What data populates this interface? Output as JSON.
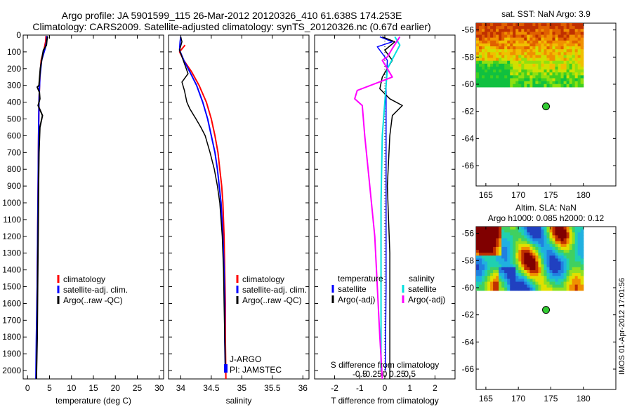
{
  "header": {
    "line1": "Argo profile: JA 5901599_115 26-Mar-2012 20120326_410 61.638S 174.253E",
    "line2": "Climatology: CARS2009. Satellite-adjusted climatology: synTS_20120326.nc (0.67d earlier)"
  },
  "colors": {
    "climatology": "#ff0000",
    "satellite": "#0000ff",
    "argo": "#000000",
    "salinity_satellite": "#00e0e0",
    "salinity_argo": "#ff00ff",
    "marker": "#33cc33"
  },
  "side_stamp": "IMOS 01-Apr-2012 17:01:56",
  "chart_data": [
    {
      "type": "line",
      "panel": "temperature",
      "xlabel": "temperature (deg C)",
      "xlim": [
        -1,
        31
      ],
      "ylim": [
        2050,
        0
      ],
      "xticks": [
        0,
        5,
        10,
        15,
        20,
        25,
        30
      ],
      "yticks": [
        0,
        100,
        200,
        300,
        400,
        500,
        600,
        700,
        800,
        900,
        1000,
        1100,
        1200,
        1300,
        1400,
        1500,
        1600,
        1700,
        1800,
        1900,
        2000
      ],
      "legend": [
        "climatology",
        "satellite-adj. clim.",
        "Argo(..raw -QC)"
      ],
      "series": [
        {
          "name": "climatology",
          "color": "#ff0000",
          "points": [
            [
              4.2,
              5
            ],
            [
              4.1,
              40
            ],
            [
              3.8,
              80
            ],
            [
              3.1,
              150
            ],
            [
              2.8,
              250
            ],
            [
              2.6,
              400
            ],
            [
              2.5,
              600
            ],
            [
              2.4,
              900
            ],
            [
              2.3,
              1200
            ],
            [
              2.2,
              1500
            ],
            [
              2.1,
              1800
            ],
            [
              2.0,
              2050
            ]
          ]
        },
        {
          "name": "satellite-adj. clim.",
          "color": "#0000ff",
          "points": [
            [
              4.4,
              5
            ],
            [
              4.3,
              40
            ],
            [
              4.0,
              80
            ],
            [
              3.2,
              150
            ],
            [
              2.8,
              250
            ],
            [
              2.6,
              400
            ],
            [
              2.5,
              600
            ],
            [
              2.4,
              900
            ],
            [
              2.3,
              1200
            ],
            [
              2.2,
              1500
            ],
            [
              2.0,
              1800
            ],
            [
              1.9,
              2050
            ]
          ]
        },
        {
          "name": "Argo(..raw -QC)",
          "color": "#000000",
          "points": [
            [
              4.6,
              8
            ],
            [
              4.4,
              30
            ],
            [
              4.3,
              60
            ],
            [
              3.6,
              90
            ],
            [
              3.2,
              150
            ],
            [
              2.9,
              200
            ],
            [
              2.6,
              300
            ],
            [
              2.2,
              310
            ],
            [
              2.7,
              340
            ],
            [
              2.8,
              380
            ],
            [
              2.4,
              420
            ],
            [
              3.4,
              480
            ],
            [
              2.8,
              550
            ],
            [
              2.6,
              700
            ],
            [
              2.5,
              900
            ],
            [
              2.4,
              1200
            ],
            [
              2.3,
              1500
            ],
            [
              2.2,
              1800
            ],
            [
              2.0,
              2050
            ]
          ]
        }
      ]
    },
    {
      "type": "line",
      "panel": "salinity",
      "xlabel": "salinity",
      "xlim": [
        33.8,
        36.1
      ],
      "ylim": [
        2050,
        0
      ],
      "xticks": [
        34,
        34.5,
        35,
        35.5,
        36
      ],
      "legend": [
        "climatology",
        "satellite-adj. clim.",
        "Argo(..raw -QC)"
      ],
      "annotations": [
        "J-ARGO",
        "PI: JAMSTEC"
      ],
      "series": [
        {
          "name": "climatology",
          "color": "#ff0000",
          "points": [
            [
              34.07,
              60
            ],
            [
              33.98,
              100
            ],
            [
              34.05,
              150
            ],
            [
              34.18,
              220
            ],
            [
              34.3,
              300
            ],
            [
              34.42,
              400
            ],
            [
              34.5,
              500
            ],
            [
              34.56,
              600
            ],
            [
              34.61,
              700
            ],
            [
              34.64,
              800
            ],
            [
              34.67,
              900
            ],
            [
              34.69,
              1000
            ],
            [
              34.71,
              1200
            ],
            [
              34.72,
              1400
            ],
            [
              34.73,
              1600
            ],
            [
              34.73,
              1800
            ],
            [
              34.74,
              2050
            ]
          ]
        },
        {
          "name": "satellite-adj. clim.",
          "color": "#0000ff",
          "points": [
            [
              34.0,
              10
            ],
            [
              33.99,
              40
            ],
            [
              33.98,
              90
            ],
            [
              34.05,
              150
            ],
            [
              34.15,
              220
            ],
            [
              34.26,
              300
            ],
            [
              34.36,
              400
            ],
            [
              34.44,
              500
            ],
            [
              34.5,
              600
            ],
            [
              34.56,
              700
            ],
            [
              34.6,
              800
            ],
            [
              34.63,
              900
            ],
            [
              34.66,
              1000
            ],
            [
              34.69,
              1200
            ],
            [
              34.71,
              1400
            ],
            [
              34.72,
              1600
            ],
            [
              34.72,
              1800
            ],
            [
              34.73,
              2000
            ]
          ]
        },
        {
          "name": "Argo(..raw -QC)",
          "color": "#000000",
          "points": [
            [
              34.0,
              10
            ],
            [
              34.02,
              40
            ],
            [
              33.98,
              90
            ],
            [
              34.04,
              150
            ],
            [
              34.12,
              230
            ],
            [
              34.02,
              280
            ],
            [
              34.06,
              330
            ],
            [
              34.1,
              400
            ],
            [
              34.15,
              440
            ],
            [
              34.25,
              500
            ],
            [
              34.33,
              550
            ],
            [
              34.4,
              600
            ],
            [
              34.48,
              700
            ],
            [
              34.55,
              800
            ],
            [
              34.6,
              900
            ],
            [
              34.64,
              1000
            ],
            [
              34.68,
              1200
            ],
            [
              34.7,
              1400
            ],
            [
              34.71,
              1600
            ],
            [
              34.72,
              1800
            ],
            [
              34.73,
              2000
            ]
          ]
        }
      ]
    },
    {
      "type": "line",
      "panel": "difference",
      "xlabel": "T difference from climatology",
      "xlabel_top": "S difference from climatology",
      "xlim": [
        -2.8,
        2.8
      ],
      "ylim": [
        2050,
        0
      ],
      "xticks": [
        -2,
        -1,
        0,
        1,
        2
      ],
      "xticks_top": [
        [
          "-0.5",
          -1.0
        ],
        [
          "-0.25",
          -0.5
        ],
        [
          "0",
          0
        ],
        [
          "0.25",
          0.5
        ],
        [
          "0.5",
          1.0
        ]
      ],
      "legend_left_title": "temperature",
      "legend_right_title": "salinity",
      "legend": [
        "satellite",
        "Argo(-adj)",
        "satellite",
        "Argo(-adj)"
      ],
      "series": [
        {
          "name": "temperature satellite",
          "color": "#0000ff",
          "points": [
            [
              -0.2,
              10
            ],
            [
              0.3,
              40
            ],
            [
              -0.3,
              70
            ],
            [
              0.1,
              150
            ],
            [
              0.05,
              300
            ],
            [
              0.05,
              600
            ],
            [
              0.05,
              1000
            ],
            [
              0.05,
              1500
            ],
            [
              0.02,
              2000
            ]
          ]
        },
        {
          "name": "temperature Argo(-adj)",
          "color": "#000000",
          "points": [
            [
              -0.1,
              10
            ],
            [
              0.4,
              40
            ],
            [
              0.0,
              90
            ],
            [
              0.3,
              150
            ],
            [
              -0.1,
              250
            ],
            [
              -0.2,
              320
            ],
            [
              0.2,
              380
            ],
            [
              0.7,
              420
            ],
            [
              0.3,
              480
            ],
            [
              0.2,
              600
            ],
            [
              0.1,
              900
            ],
            [
              0.2,
              1300
            ],
            [
              0.2,
              1700
            ],
            [
              0.2,
              2050
            ]
          ]
        },
        {
          "name": "salinity satellite",
          "color": "#00e0e0",
          "points": [
            [
              0.4,
              10
            ],
            [
              0.6,
              60
            ],
            [
              0.1,
              200
            ],
            [
              0.0,
              400
            ],
            [
              -0.1,
              600
            ],
            [
              -0.15,
              1000
            ],
            [
              -0.15,
              1500
            ],
            [
              -0.15,
              2000
            ]
          ]
        },
        {
          "name": "salinity Argo(-adj)",
          "color": "#ff00ff",
          "points": [
            [
              0.6,
              10
            ],
            [
              0.3,
              80
            ],
            [
              0.1,
              130
            ],
            [
              -0.1,
              150
            ],
            [
              0.3,
              250
            ],
            [
              -1.1,
              330
            ],
            [
              -1.2,
              380
            ],
            [
              -0.9,
              420
            ],
            [
              -0.8,
              600
            ],
            [
              -0.6,
              900
            ],
            [
              -0.4,
              1200
            ],
            [
              -0.3,
              1500
            ],
            [
              -0.2,
              1800
            ],
            [
              -0.1,
              2050
            ]
          ]
        }
      ]
    },
    {
      "type": "heatmap",
      "panel": "sat_sst_map",
      "title": "sat. SST: NaN Argo: 3.9",
      "xlim": [
        163.5,
        185
      ],
      "ylim": [
        -67.5,
        -55.5
      ],
      "xticks": [
        165,
        170,
        175,
        180
      ],
      "yticks": [
        -56,
        -58,
        -60,
        -62,
        -64,
        -66
      ],
      "field_extent": {
        "lon": [
          163.5,
          180
        ],
        "lat": [
          -60.2,
          -55.5
        ]
      },
      "argo_position": {
        "lon": 174.253,
        "lat": -61.638
      }
    },
    {
      "type": "heatmap",
      "panel": "altimetry_sla_map",
      "title": "Altim. SLA: NaN",
      "subtitle": "Argo h1000: 0.085 h2000: 0.12",
      "xlim": [
        163.5,
        185
      ],
      "ylim": [
        -67.5,
        -55.5
      ],
      "xticks": [
        165,
        170,
        175,
        180
      ],
      "yticks": [
        -56,
        -58,
        -60,
        -62,
        -64,
        -66
      ],
      "field_extent": {
        "lon": [
          163.5,
          180
        ],
        "lat": [
          -60.2,
          -55.5
        ]
      },
      "argo_position": {
        "lon": 174.253,
        "lat": -61.638
      }
    }
  ]
}
